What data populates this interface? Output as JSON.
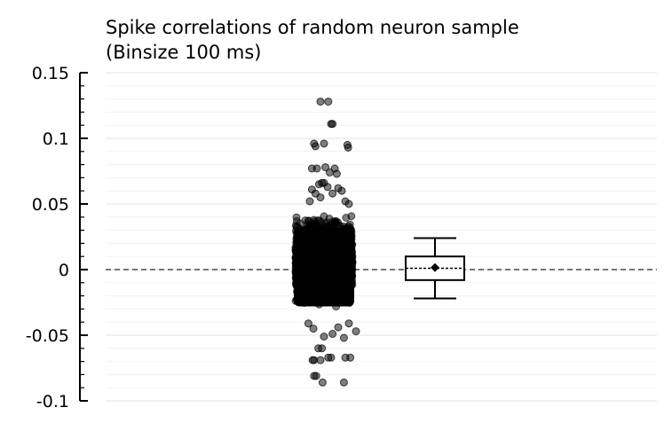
{
  "chart_data": {
    "type": "scatter",
    "title": "Spike correlations of random neuron sample\n(Binsize 100 ms)",
    "title_lines": [
      "Spike correlations of random neuron sample",
      "(Binsize 100 ms)"
    ],
    "xlabel": "",
    "ylabel": "",
    "ylim": [
      -0.1,
      0.15
    ],
    "yticks": [
      {
        "value": 0.15,
        "label": "0.15"
      },
      {
        "value": 0.1,
        "label": "0.1"
      },
      {
        "value": 0.05,
        "label": "0.05"
      },
      {
        "value": 0,
        "label": "0"
      },
      {
        "value": -0.05,
        "label": "-0.05"
      },
      {
        "value": -0.1,
        "label": "-0.1"
      }
    ],
    "grid": true,
    "reference_line": {
      "y": 0,
      "style": "dashed"
    },
    "point_color": "#000000",
    "point_opacity": 0.5,
    "points_strip": {
      "x_center": 1,
      "dense_band": {
        "y_min": -0.03,
        "y_max": 0.045
      },
      "outliers": [
        {
          "x": 0.95,
          "y": 0.128
        },
        {
          "x": 1.06,
          "y": 0.128
        },
        {
          "x": 1.1,
          "y": 0.111
        },
        {
          "x": 1.12,
          "y": 0.111
        },
        {
          "x": 0.86,
          "y": 0.096
        },
        {
          "x": 0.88,
          "y": 0.094
        },
        {
          "x": 1.0,
          "y": 0.096
        },
        {
          "x": 1.33,
          "y": 0.095
        },
        {
          "x": 1.34,
          "y": 0.093
        },
        {
          "x": 0.83,
          "y": 0.077
        },
        {
          "x": 0.9,
          "y": 0.077
        },
        {
          "x": 1.02,
          "y": 0.078
        },
        {
          "x": 1.08,
          "y": 0.074
        },
        {
          "x": 1.15,
          "y": 0.077
        },
        {
          "x": 1.18,
          "y": 0.073
        },
        {
          "x": 0.93,
          "y": 0.065
        },
        {
          "x": 0.97,
          "y": 0.066
        },
        {
          "x": 1.0,
          "y": 0.066
        },
        {
          "x": 1.05,
          "y": 0.063
        },
        {
          "x": 1.2,
          "y": 0.062
        },
        {
          "x": 0.83,
          "y": 0.061
        },
        {
          "x": 0.88,
          "y": 0.058
        },
        {
          "x": 1.12,
          "y": 0.058
        },
        {
          "x": 1.25,
          "y": 0.06
        },
        {
          "x": 0.8,
          "y": 0.052
        },
        {
          "x": 1.3,
          "y": 0.052
        },
        {
          "x": 0.95,
          "y": 0.055
        },
        {
          "x": 1.35,
          "y": 0.05
        },
        {
          "x": 0.78,
          "y": -0.041
        },
        {
          "x": 1.35,
          "y": -0.041
        },
        {
          "x": 0.85,
          "y": -0.045
        },
        {
          "x": 1.2,
          "y": -0.044
        },
        {
          "x": 1.45,
          "y": -0.047
        },
        {
          "x": 1.0,
          "y": -0.051
        },
        {
          "x": 1.12,
          "y": -0.049
        },
        {
          "x": 1.28,
          "y": -0.052
        },
        {
          "x": 0.92,
          "y": -0.06
        },
        {
          "x": 0.97,
          "y": -0.06
        },
        {
          "x": 0.84,
          "y": -0.069
        },
        {
          "x": 0.86,
          "y": -0.069
        },
        {
          "x": 0.95,
          "y": -0.069
        },
        {
          "x": 1.06,
          "y": -0.067
        },
        {
          "x": 1.1,
          "y": -0.067
        },
        {
          "x": 1.3,
          "y": -0.067
        },
        {
          "x": 1.37,
          "y": -0.067
        },
        {
          "x": 0.86,
          "y": -0.081
        },
        {
          "x": 0.89,
          "y": -0.081
        },
        {
          "x": 0.98,
          "y": -0.086
        },
        {
          "x": 1.28,
          "y": -0.086
        }
      ]
    },
    "boxplot": {
      "x": 2,
      "whisker_low": -0.022,
      "q1": -0.008,
      "median": 0.001,
      "q3": 0.01,
      "whisker_high": 0.024,
      "mean": 0.0015
    }
  }
}
